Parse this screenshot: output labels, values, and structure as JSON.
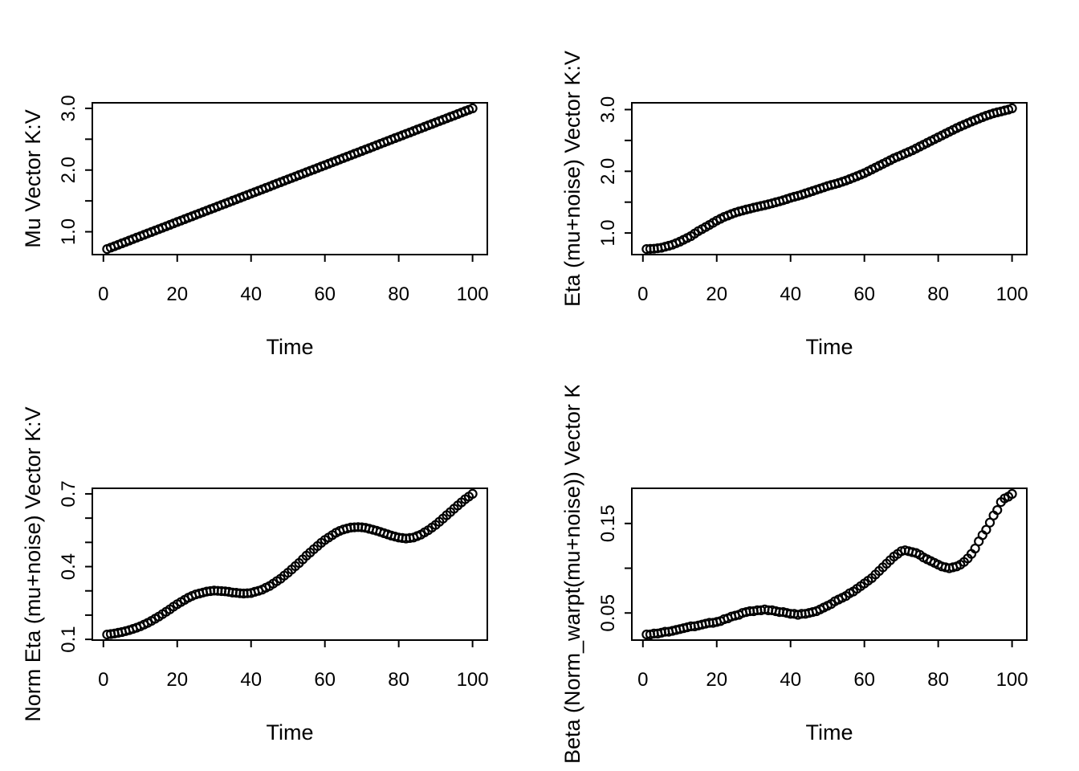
{
  "figure": {
    "colors": {
      "background": "#ffffff",
      "foreground": "#000000"
    },
    "marker": "open-circle",
    "layout": "2x2-grid"
  },
  "chart_data": {
    "type": "scatter",
    "title": "",
    "shared_xlabel": "Time",
    "x": [
      1,
      2,
      3,
      4,
      5,
      6,
      7,
      8,
      9,
      10,
      11,
      12,
      13,
      14,
      15,
      16,
      17,
      18,
      19,
      20,
      21,
      22,
      23,
      24,
      25,
      26,
      27,
      28,
      29,
      30,
      31,
      32,
      33,
      34,
      35,
      36,
      37,
      38,
      39,
      40,
      41,
      42,
      43,
      44,
      45,
      46,
      47,
      48,
      49,
      50,
      51,
      52,
      53,
      54,
      55,
      56,
      57,
      58,
      59,
      60,
      61,
      62,
      63,
      64,
      65,
      66,
      67,
      68,
      69,
      70,
      71,
      72,
      73,
      74,
      75,
      76,
      77,
      78,
      79,
      80,
      81,
      82,
      83,
      84,
      85,
      86,
      87,
      88,
      89,
      90,
      91,
      92,
      93,
      94,
      95,
      96,
      97,
      98,
      99,
      100
    ],
    "panels": [
      {
        "position": "top-left",
        "series_name": "Mu",
        "xlabel": "Time",
        "ylabel": "Mu Vector K:V",
        "xlim": [
          -3,
          104
        ],
        "ylim": [
          0.63,
          3.09
        ],
        "xticks": [
          0,
          20,
          40,
          60,
          80,
          100
        ],
        "xtick_labels": [
          "0",
          "20",
          "40",
          "60",
          "80",
          "100"
        ],
        "yticks": [
          1.0,
          1.5,
          2.0,
          2.5,
          3.0
        ],
        "ytick_labels": [
          "1.0",
          "",
          "2.0",
          "",
          "3.0"
        ],
        "y": [
          0.72,
          0.743,
          0.766,
          0.789,
          0.812,
          0.835,
          0.858,
          0.881,
          0.904,
          0.927,
          0.95,
          0.973,
          0.996,
          1.019,
          1.042,
          1.065,
          1.088,
          1.112,
          1.135,
          1.158,
          1.181,
          1.204,
          1.227,
          1.25,
          1.273,
          1.296,
          1.319,
          1.342,
          1.365,
          1.388,
          1.411,
          1.434,
          1.457,
          1.48,
          1.503,
          1.526,
          1.549,
          1.572,
          1.595,
          1.618,
          1.641,
          1.664,
          1.687,
          1.71,
          1.733,
          1.757,
          1.78,
          1.803,
          1.826,
          1.849,
          1.872,
          1.895,
          1.918,
          1.941,
          1.964,
          1.987,
          2.01,
          2.033,
          2.056,
          2.079,
          2.102,
          2.125,
          2.148,
          2.171,
          2.194,
          2.217,
          2.24,
          2.263,
          2.286,
          2.309,
          2.332,
          2.355,
          2.378,
          2.402,
          2.425,
          2.448,
          2.471,
          2.494,
          2.517,
          2.54,
          2.563,
          2.586,
          2.609,
          2.632,
          2.655,
          2.678,
          2.701,
          2.724,
          2.747,
          2.77,
          2.793,
          2.816,
          2.839,
          2.862,
          2.885,
          2.908,
          2.931,
          2.954,
          2.977,
          3.0
        ]
      },
      {
        "position": "top-right",
        "series_name": "Eta",
        "xlabel": "Time",
        "ylabel": "Eta (mu+noise) Vector K:V",
        "xlim": [
          -3,
          104
        ],
        "ylim": [
          0.65,
          3.11
        ],
        "xticks": [
          0,
          20,
          40,
          60,
          80,
          100
        ],
        "xtick_labels": [
          "0",
          "20",
          "40",
          "60",
          "80",
          "100"
        ],
        "yticks": [
          1.0,
          1.5,
          2.0,
          2.5,
          3.0
        ],
        "ytick_labels": [
          "1.0",
          "",
          "2.0",
          "",
          "3.0"
        ],
        "y": [
          0.74,
          0.743,
          0.745,
          0.753,
          0.76,
          0.777,
          0.793,
          0.81,
          0.835,
          0.86,
          0.89,
          0.92,
          0.95,
          0.99,
          1.03,
          1.063,
          1.097,
          1.13,
          1.165,
          1.2,
          1.23,
          1.26,
          1.283,
          1.307,
          1.33,
          1.347,
          1.363,
          1.38,
          1.395,
          1.41,
          1.423,
          1.437,
          1.45,
          1.465,
          1.48,
          1.497,
          1.513,
          1.53,
          1.55,
          1.57,
          1.587,
          1.603,
          1.62,
          1.64,
          1.66,
          1.68,
          1.7,
          1.72,
          1.74,
          1.76,
          1.777,
          1.793,
          1.81,
          1.83,
          1.85,
          1.873,
          1.897,
          1.92,
          1.945,
          1.97,
          2.0,
          2.03,
          2.06,
          2.09,
          2.12,
          2.15,
          2.18,
          2.21,
          2.235,
          2.26,
          2.287,
          2.313,
          2.34,
          2.37,
          2.4,
          2.43,
          2.46,
          2.49,
          2.52,
          2.55,
          2.58,
          2.61,
          2.64,
          2.67,
          2.7,
          2.727,
          2.753,
          2.78,
          2.805,
          2.83,
          2.853,
          2.877,
          2.9,
          2.92,
          2.94,
          2.955,
          2.97,
          2.985,
          3.0,
          3.02
        ]
      },
      {
        "position": "bottom-left",
        "series_name": "Norm Eta",
        "xlabel": "Time",
        "ylabel": "Norm Eta (mu+noise) Vector K:V",
        "xlim": [
          -3,
          104
        ],
        "ylim": [
          0.097,
          0.723
        ],
        "xticks": [
          0,
          20,
          40,
          60,
          80,
          100
        ],
        "xtick_labels": [
          "0",
          "20",
          "40",
          "60",
          "80",
          "100"
        ],
        "yticks": [
          0.1,
          0.2,
          0.3,
          0.4,
          0.5,
          0.6,
          0.7
        ],
        "ytick_labels": [
          "0.1",
          "",
          "",
          "0.4",
          "",
          "",
          "0.7"
        ],
        "y": [
          0.12,
          0.122,
          0.124,
          0.127,
          0.13,
          0.134,
          0.138,
          0.143,
          0.148,
          0.154,
          0.161,
          0.168,
          0.176,
          0.185,
          0.194,
          0.204,
          0.214,
          0.224,
          0.235,
          0.245,
          0.254,
          0.263,
          0.272,
          0.279,
          0.285,
          0.289,
          0.293,
          0.297,
          0.299,
          0.301,
          0.3,
          0.299,
          0.298,
          0.296,
          0.293,
          0.292,
          0.29,
          0.289,
          0.29,
          0.291,
          0.296,
          0.3,
          0.305,
          0.313,
          0.32,
          0.33,
          0.34,
          0.35,
          0.363,
          0.375,
          0.388,
          0.402,
          0.415,
          0.43,
          0.445,
          0.458,
          0.472,
          0.485,
          0.498,
          0.51,
          0.52,
          0.53,
          0.54,
          0.547,
          0.553,
          0.557,
          0.561,
          0.562,
          0.563,
          0.562,
          0.56,
          0.556,
          0.552,
          0.548,
          0.543,
          0.538,
          0.533,
          0.528,
          0.524,
          0.52,
          0.518,
          0.516,
          0.518,
          0.52,
          0.526,
          0.532,
          0.541,
          0.55,
          0.561,
          0.572,
          0.585,
          0.598,
          0.612,
          0.625,
          0.639,
          0.652,
          0.665,
          0.678,
          0.689,
          0.7
        ]
      },
      {
        "position": "bottom-right",
        "series_name": "Beta",
        "xlabel": "Time",
        "ylabel": "Beta (Norm_warpt(mu+noise)) Vector K:",
        "ylabel_anchor": "bottom",
        "xlim": [
          -3,
          104
        ],
        "ylim": [
          0.0197,
          0.1893
        ],
        "xticks": [
          0,
          20,
          40,
          60,
          80,
          100
        ],
        "xtick_labels": [
          "0",
          "20",
          "40",
          "60",
          "80",
          "100"
        ],
        "yticks": [
          0.05,
          0.1,
          0.15
        ],
        "ytick_labels": [
          "0.05",
          "",
          "0.15"
        ],
        "y": [
          0.026,
          0.026,
          0.027,
          0.027,
          0.028,
          0.029,
          0.029,
          0.03,
          0.031,
          0.032,
          0.033,
          0.034,
          0.035,
          0.035,
          0.036,
          0.037,
          0.038,
          0.039,
          0.039,
          0.04,
          0.041,
          0.043,
          0.044,
          0.046,
          0.047,
          0.048,
          0.05,
          0.051,
          0.052,
          0.052,
          0.053,
          0.053,
          0.054,
          0.053,
          0.053,
          0.052,
          0.051,
          0.051,
          0.05,
          0.049,
          0.049,
          0.048,
          0.049,
          0.049,
          0.05,
          0.051,
          0.052,
          0.054,
          0.056,
          0.058,
          0.06,
          0.063,
          0.065,
          0.067,
          0.069,
          0.072,
          0.074,
          0.077,
          0.08,
          0.083,
          0.086,
          0.089,
          0.093,
          0.097,
          0.101,
          0.105,
          0.109,
          0.113,
          0.116,
          0.119,
          0.12,
          0.119,
          0.118,
          0.117,
          0.115,
          0.112,
          0.11,
          0.108,
          0.106,
          0.104,
          0.102,
          0.101,
          0.1,
          0.101,
          0.102,
          0.104,
          0.107,
          0.111,
          0.116,
          0.122,
          0.13,
          0.137,
          0.143,
          0.151,
          0.159,
          0.165,
          0.174,
          0.178,
          0.18,
          0.183
        ]
      }
    ]
  }
}
